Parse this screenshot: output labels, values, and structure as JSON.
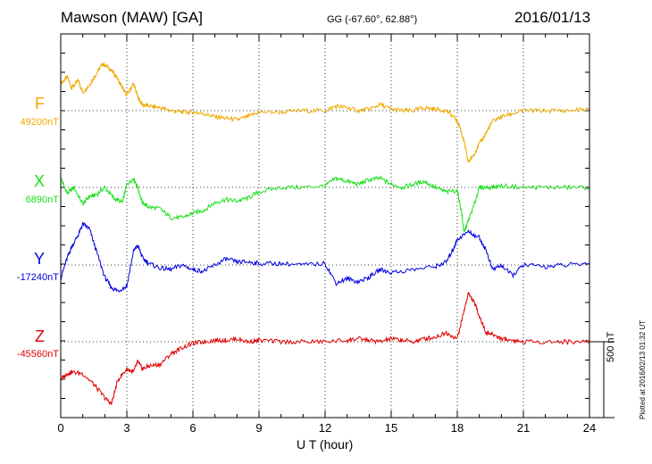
{
  "header": {
    "station": "Mawson (MAW)  [GA]",
    "coords": "GG (-67.60°,  62.88°)",
    "date": "2016/01/13"
  },
  "components": [
    {
      "label": "F",
      "baseline": "49200nT",
      "color": "#f0a800"
    },
    {
      "label": "X",
      "baseline": "6890nT",
      "color": "#18e018"
    },
    {
      "label": "Y",
      "baseline": "-17240nT",
      "color": "#0000e0"
    },
    {
      "label": "Z",
      "baseline": "-45560nT",
      "color": "#e00000"
    }
  ],
  "scale_label": "500 nT",
  "plotted_note": "Plotted at 2016/02/13 01:32 UT",
  "chart_data": {
    "type": "line",
    "xlabel": "U T (hour)",
    "xlim": [
      0,
      24
    ],
    "xticks": [
      "0",
      "3",
      "6",
      "9",
      "12",
      "15",
      "18",
      "21",
      "24"
    ],
    "units": "nT",
    "scale_bar_nT": 500,
    "grid": "dotted",
    "series": [
      {
        "name": "F",
        "baseline_nT": 49200,
        "color": "#f0a800",
        "x": [
          0,
          0.3,
          0.5,
          0.8,
          1.0,
          1.3,
          1.6,
          1.9,
          2.2,
          2.5,
          2.8,
          3.0,
          3.3,
          3.5,
          3.7,
          4.0,
          4.5,
          5.0,
          5.5,
          6.0,
          6.5,
          7.0,
          7.5,
          8.0,
          8.5,
          9.0,
          10.0,
          11.0,
          12.0,
          12.5,
          13.0,
          13.5,
          14.0,
          14.5,
          15.0,
          15.5,
          16.0,
          16.5,
          17.0,
          17.5,
          17.9,
          18.1,
          18.3,
          18.5,
          18.7,
          19.0,
          19.3,
          19.6,
          20.0,
          20.5,
          21.0,
          22.0,
          23.0,
          24.0
        ],
        "y": [
          180,
          220,
          150,
          200,
          120,
          170,
          240,
          310,
          280,
          230,
          150,
          100,
          180,
          90,
          40,
          30,
          20,
          0,
          -10,
          -10,
          -20,
          -40,
          -50,
          -60,
          -40,
          -10,
          -10,
          0,
          0,
          30,
          20,
          0,
          10,
          40,
          10,
          0,
          0,
          20,
          10,
          0,
          -50,
          -100,
          -200,
          -340,
          -300,
          -220,
          -150,
          -70,
          -40,
          -20,
          0,
          0,
          0,
          10
        ]
      },
      {
        "name": "X",
        "baseline_nT": 6890,
        "color": "#18e018",
        "x": [
          0,
          0.3,
          0.6,
          1.0,
          1.3,
          1.6,
          2.0,
          2.4,
          2.8,
          3.0,
          3.3,
          3.5,
          3.7,
          4.0,
          4.5,
          5.0,
          5.5,
          6.0,
          6.5,
          7.0,
          7.5,
          8.0,
          8.5,
          9.0,
          10.0,
          11.0,
          12.0,
          12.5,
          13.0,
          13.5,
          14.0,
          14.5,
          15.0,
          15.5,
          16.0,
          16.5,
          17.0,
          17.5,
          18.0,
          18.2,
          18.3,
          18.5,
          18.8,
          19.0,
          19.5,
          20.0,
          21.0,
          22.0,
          23.0,
          24.0
        ],
        "y": [
          60,
          -40,
          0,
          -110,
          -60,
          -50,
          0,
          -70,
          -100,
          20,
          60,
          0,
          -100,
          -130,
          -140,
          -200,
          -200,
          -170,
          -150,
          -100,
          -80,
          -90,
          -70,
          -30,
          0,
          0,
          10,
          60,
          40,
          20,
          50,
          60,
          20,
          0,
          20,
          40,
          0,
          -30,
          -20,
          -170,
          -300,
          -220,
          -100,
          0,
          0,
          10,
          0,
          0,
          0,
          0
        ]
      },
      {
        "name": "Y",
        "baseline_nT": -17240,
        "color": "#0000e0",
        "x": [
          0,
          0.3,
          0.5,
          0.8,
          1.0,
          1.3,
          1.6,
          2.0,
          2.3,
          2.6,
          3.0,
          3.3,
          3.5,
          3.7,
          4.0,
          4.5,
          5.0,
          5.5,
          6.0,
          6.5,
          7.0,
          7.5,
          8.0,
          8.5,
          9.0,
          10.0,
          11.0,
          12.0,
          12.5,
          13.0,
          13.5,
          14.0,
          14.5,
          15.0,
          16.0,
          17.0,
          17.5,
          17.8,
          18.0,
          18.5,
          19.0,
          19.3,
          19.6,
          20.0,
          20.5,
          21.0,
          22.0,
          23.0,
          24.0
        ],
        "y": [
          -90,
          50,
          120,
          200,
          270,
          240,
          100,
          -80,
          -150,
          -170,
          -140,
          90,
          130,
          50,
          10,
          -20,
          -30,
          0,
          -30,
          -40,
          0,
          40,
          20,
          20,
          10,
          10,
          0,
          10,
          -120,
          -90,
          -110,
          -80,
          -30,
          -50,
          -30,
          -10,
          20,
          100,
          170,
          220,
          180,
          100,
          -30,
          0,
          -70,
          0,
          -10,
          0,
          10
        ]
      },
      {
        "name": "Z",
        "baseline_nT": -45560,
        "color": "#e00000",
        "x": [
          0,
          0.3,
          0.5,
          1.0,
          1.5,
          2.0,
          2.3,
          2.6,
          3.0,
          3.3,
          3.5,
          3.7,
          4.0,
          4.5,
          5.0,
          5.5,
          6.0,
          6.5,
          7.0,
          7.5,
          8.0,
          8.5,
          9.0,
          10.0,
          11.0,
          12.0,
          13.0,
          13.5,
          14.0,
          14.5,
          15.0,
          15.5,
          16.0,
          16.5,
          17.0,
          17.5,
          18.0,
          18.3,
          18.5,
          18.8,
          19.0,
          19.3,
          19.6,
          20.0,
          20.5,
          21.0,
          22.0,
          23.0,
          24.0
        ],
        "y": [
          -250,
          -210,
          -200,
          -210,
          -280,
          -370,
          -410,
          -250,
          -180,
          -200,
          -130,
          -180,
          -160,
          -150,
          -80,
          -40,
          -10,
          0,
          10,
          10,
          20,
          0,
          10,
          0,
          0,
          0,
          10,
          20,
          10,
          0,
          20,
          10,
          0,
          20,
          30,
          60,
          20,
          200,
          320,
          250,
          170,
          60,
          50,
          20,
          10,
          0,
          0,
          0,
          0
        ]
      }
    ]
  }
}
